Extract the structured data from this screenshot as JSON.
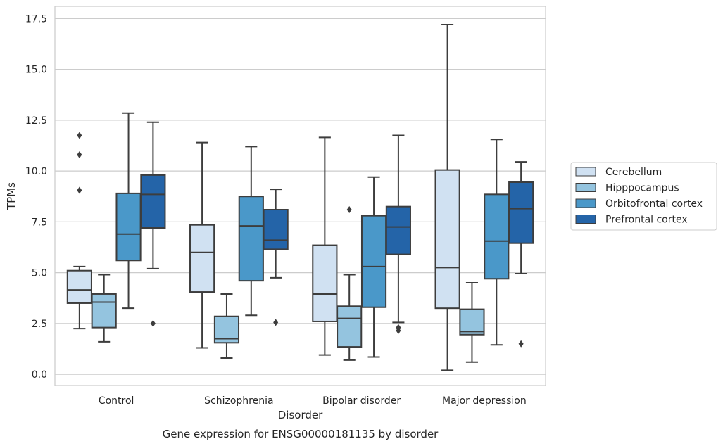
{
  "chart_data": {
    "type": "boxplot",
    "title": "",
    "caption": "Gene expression for ENSG00000181135 by disorder",
    "xlabel": "Disorder",
    "ylabel": "TPMs",
    "ylim": [
      -0.55,
      18.1
    ],
    "yticks": [
      0.0,
      2.5,
      5.0,
      7.5,
      10.0,
      12.5,
      15.0,
      17.5
    ],
    "ytick_labels": [
      "0.0",
      "2.5",
      "5.0",
      "7.5",
      "10.0",
      "12.5",
      "15.0",
      "17.5"
    ],
    "categories": [
      "Control",
      "Schizophrenia",
      "Bipolar disorder",
      "Major depression"
    ],
    "grid": true,
    "legend_position": "right",
    "series": [
      {
        "name": "Cerebellum",
        "color": "#d0e1f2",
        "boxes": [
          {
            "whislo": 2.25,
            "q1": 3.5,
            "med": 4.15,
            "q3": 5.1,
            "whishi": 5.3,
            "fliers": [
              9.05,
              10.8,
              11.75
            ]
          },
          {
            "whislo": 1.3,
            "q1": 4.05,
            "med": 6.0,
            "q3": 7.35,
            "whishi": 11.4,
            "fliers": []
          },
          {
            "whislo": 0.95,
            "q1": 2.6,
            "med": 3.95,
            "q3": 6.35,
            "whishi": 11.65,
            "fliers": []
          },
          {
            "whislo": 0.2,
            "q1": 3.25,
            "med": 5.25,
            "q3": 10.05,
            "whishi": 17.2,
            "fliers": []
          }
        ]
      },
      {
        "name": "Hipppocampus",
        "color": "#94c4df",
        "boxes": [
          {
            "whislo": 1.6,
            "q1": 2.3,
            "med": 3.55,
            "q3": 3.95,
            "whishi": 4.9,
            "fliers": []
          },
          {
            "whislo": 0.8,
            "q1": 1.55,
            "med": 1.75,
            "q3": 2.85,
            "whishi": 3.95,
            "fliers": []
          },
          {
            "whislo": 0.7,
            "q1": 1.35,
            "med": 2.75,
            "q3": 3.35,
            "whishi": 4.9,
            "fliers": [
              8.1
            ]
          },
          {
            "whislo": 0.6,
            "q1": 1.95,
            "med": 2.1,
            "q3": 3.2,
            "whishi": 4.5,
            "fliers": []
          }
        ]
      },
      {
        "name": "Orbitofrontal cortex",
        "color": "#4a98c9",
        "boxes": [
          {
            "whislo": 3.25,
            "q1": 5.6,
            "med": 6.9,
            "q3": 8.9,
            "whishi": 12.85,
            "fliers": []
          },
          {
            "whislo": 2.9,
            "q1": 4.6,
            "med": 7.3,
            "q3": 8.75,
            "whishi": 11.2,
            "fliers": []
          },
          {
            "whislo": 0.85,
            "q1": 3.3,
            "med": 5.3,
            "q3": 7.8,
            "whishi": 9.7,
            "fliers": []
          },
          {
            "whislo": 1.45,
            "q1": 4.7,
            "med": 6.55,
            "q3": 8.85,
            "whishi": 11.55,
            "fliers": []
          }
        ]
      },
      {
        "name": "Prefrontal cortex",
        "color": "#2464a8",
        "boxes": [
          {
            "whislo": 5.2,
            "q1": 7.2,
            "med": 8.85,
            "q3": 9.8,
            "whishi": 12.4,
            "fliers": [
              2.5
            ]
          },
          {
            "whislo": 4.75,
            "q1": 6.15,
            "med": 6.6,
            "q3": 8.1,
            "whishi": 9.1,
            "fliers": [
              2.55
            ]
          },
          {
            "whislo": 2.55,
            "q1": 5.9,
            "med": 7.25,
            "q3": 8.25,
            "whishi": 11.75,
            "fliers": [
              2.15,
              2.3
            ]
          },
          {
            "whislo": 4.95,
            "q1": 6.45,
            "med": 8.15,
            "q3": 9.45,
            "whishi": 10.45,
            "fliers": [
              1.5
            ]
          }
        ]
      }
    ]
  }
}
